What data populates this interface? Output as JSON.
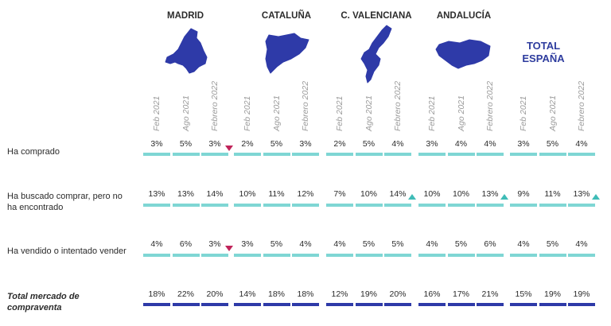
{
  "colors": {
    "teal": "#7fd6d4",
    "navy": "#2e3aa8",
    "down_marker": "#c0245a",
    "up_marker": "#3fbcb7"
  },
  "chart_data": {
    "type": "table",
    "regions": [
      "MADRID",
      "CATALUÑA",
      "C. VALENCIANA",
      "ANDALUCÍA"
    ],
    "total": [
      "TOTAL",
      "ESPAÑA"
    ],
    "columns": [
      "Feb 2021",
      "Ago 2021",
      "Febrero 2022"
    ],
    "rows": [
      {
        "label": "Ha comprado",
        "values": [
          "3%",
          "5%",
          "3%",
          "2%",
          "5%",
          "3%",
          "2%",
          "5%",
          "4%",
          "3%",
          "4%",
          "4%",
          "3%",
          "5%",
          "4%"
        ],
        "markers": [
          {
            "col": 2,
            "dir": "down"
          }
        ]
      },
      {
        "label": "Ha buscado comprar, pero no ha encontrado",
        "values": [
          "13%",
          "13%",
          "14%",
          "10%",
          "11%",
          "12%",
          "7%",
          "10%",
          "14%",
          "10%",
          "10%",
          "13%",
          "9%",
          "11%",
          "13%"
        ],
        "markers": [
          {
            "col": 8,
            "dir": "up"
          },
          {
            "col": 11,
            "dir": "up"
          },
          {
            "col": 14,
            "dir": "up"
          }
        ]
      },
      {
        "label": "Ha vendido o intentado vender",
        "values": [
          "4%",
          "6%",
          "3%",
          "3%",
          "5%",
          "4%",
          "4%",
          "5%",
          "5%",
          "4%",
          "5%",
          "6%",
          "4%",
          "5%",
          "4%"
        ],
        "markers": [
          {
            "col": 2,
            "dir": "down"
          }
        ]
      },
      {
        "label": "Total mercado de compraventa",
        "values": [
          "18%",
          "22%",
          "20%",
          "14%",
          "18%",
          "18%",
          "12%",
          "19%",
          "20%",
          "16%",
          "17%",
          "21%",
          "15%",
          "19%",
          "19%"
        ],
        "markers": []
      }
    ]
  }
}
